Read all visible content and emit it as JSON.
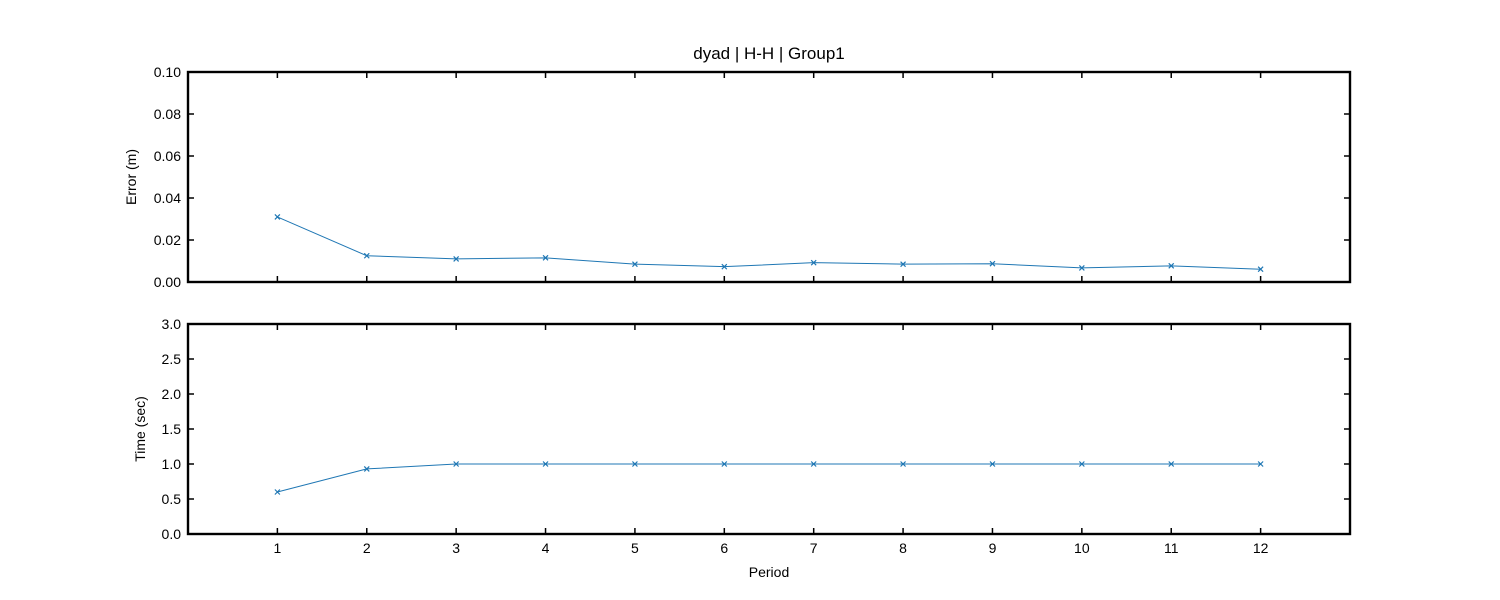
{
  "chart_data": {
    "title": "dyad | H-H | Group1",
    "xlabel": "Period",
    "x": [
      1,
      2,
      3,
      4,
      5,
      6,
      7,
      8,
      9,
      10,
      11,
      12
    ],
    "xlim": [
      0,
      13
    ],
    "xticks": [
      "1",
      "2",
      "3",
      "4",
      "5",
      "6",
      "7",
      "8",
      "9",
      "10",
      "11",
      "12"
    ],
    "series_color": "#1f77b4",
    "panels": [
      {
        "type": "line",
        "ylabel": "Error (m)",
        "ylim": [
          0,
          0.1
        ],
        "yticks": [
          "0.00",
          "0.02",
          "0.04",
          "0.06",
          "0.08",
          "0.10"
        ],
        "values": [
          0.031,
          0.0125,
          0.011,
          0.0115,
          0.0085,
          0.0073,
          0.0092,
          0.0085,
          0.0087,
          0.0067,
          0.0077,
          0.0061
        ],
        "marker": "x"
      },
      {
        "type": "line",
        "ylabel": "Time (sec)",
        "ylim": [
          0,
          3.0
        ],
        "yticks": [
          "0.0",
          "0.5",
          "1.0",
          "1.5",
          "2.0",
          "2.5",
          "3.0"
        ],
        "values": [
          0.6,
          0.93,
          1.0,
          1.0,
          1.0,
          1.0,
          1.0,
          1.0,
          1.0,
          1.0,
          1.0,
          1.0
        ],
        "marker": "x"
      }
    ]
  }
}
